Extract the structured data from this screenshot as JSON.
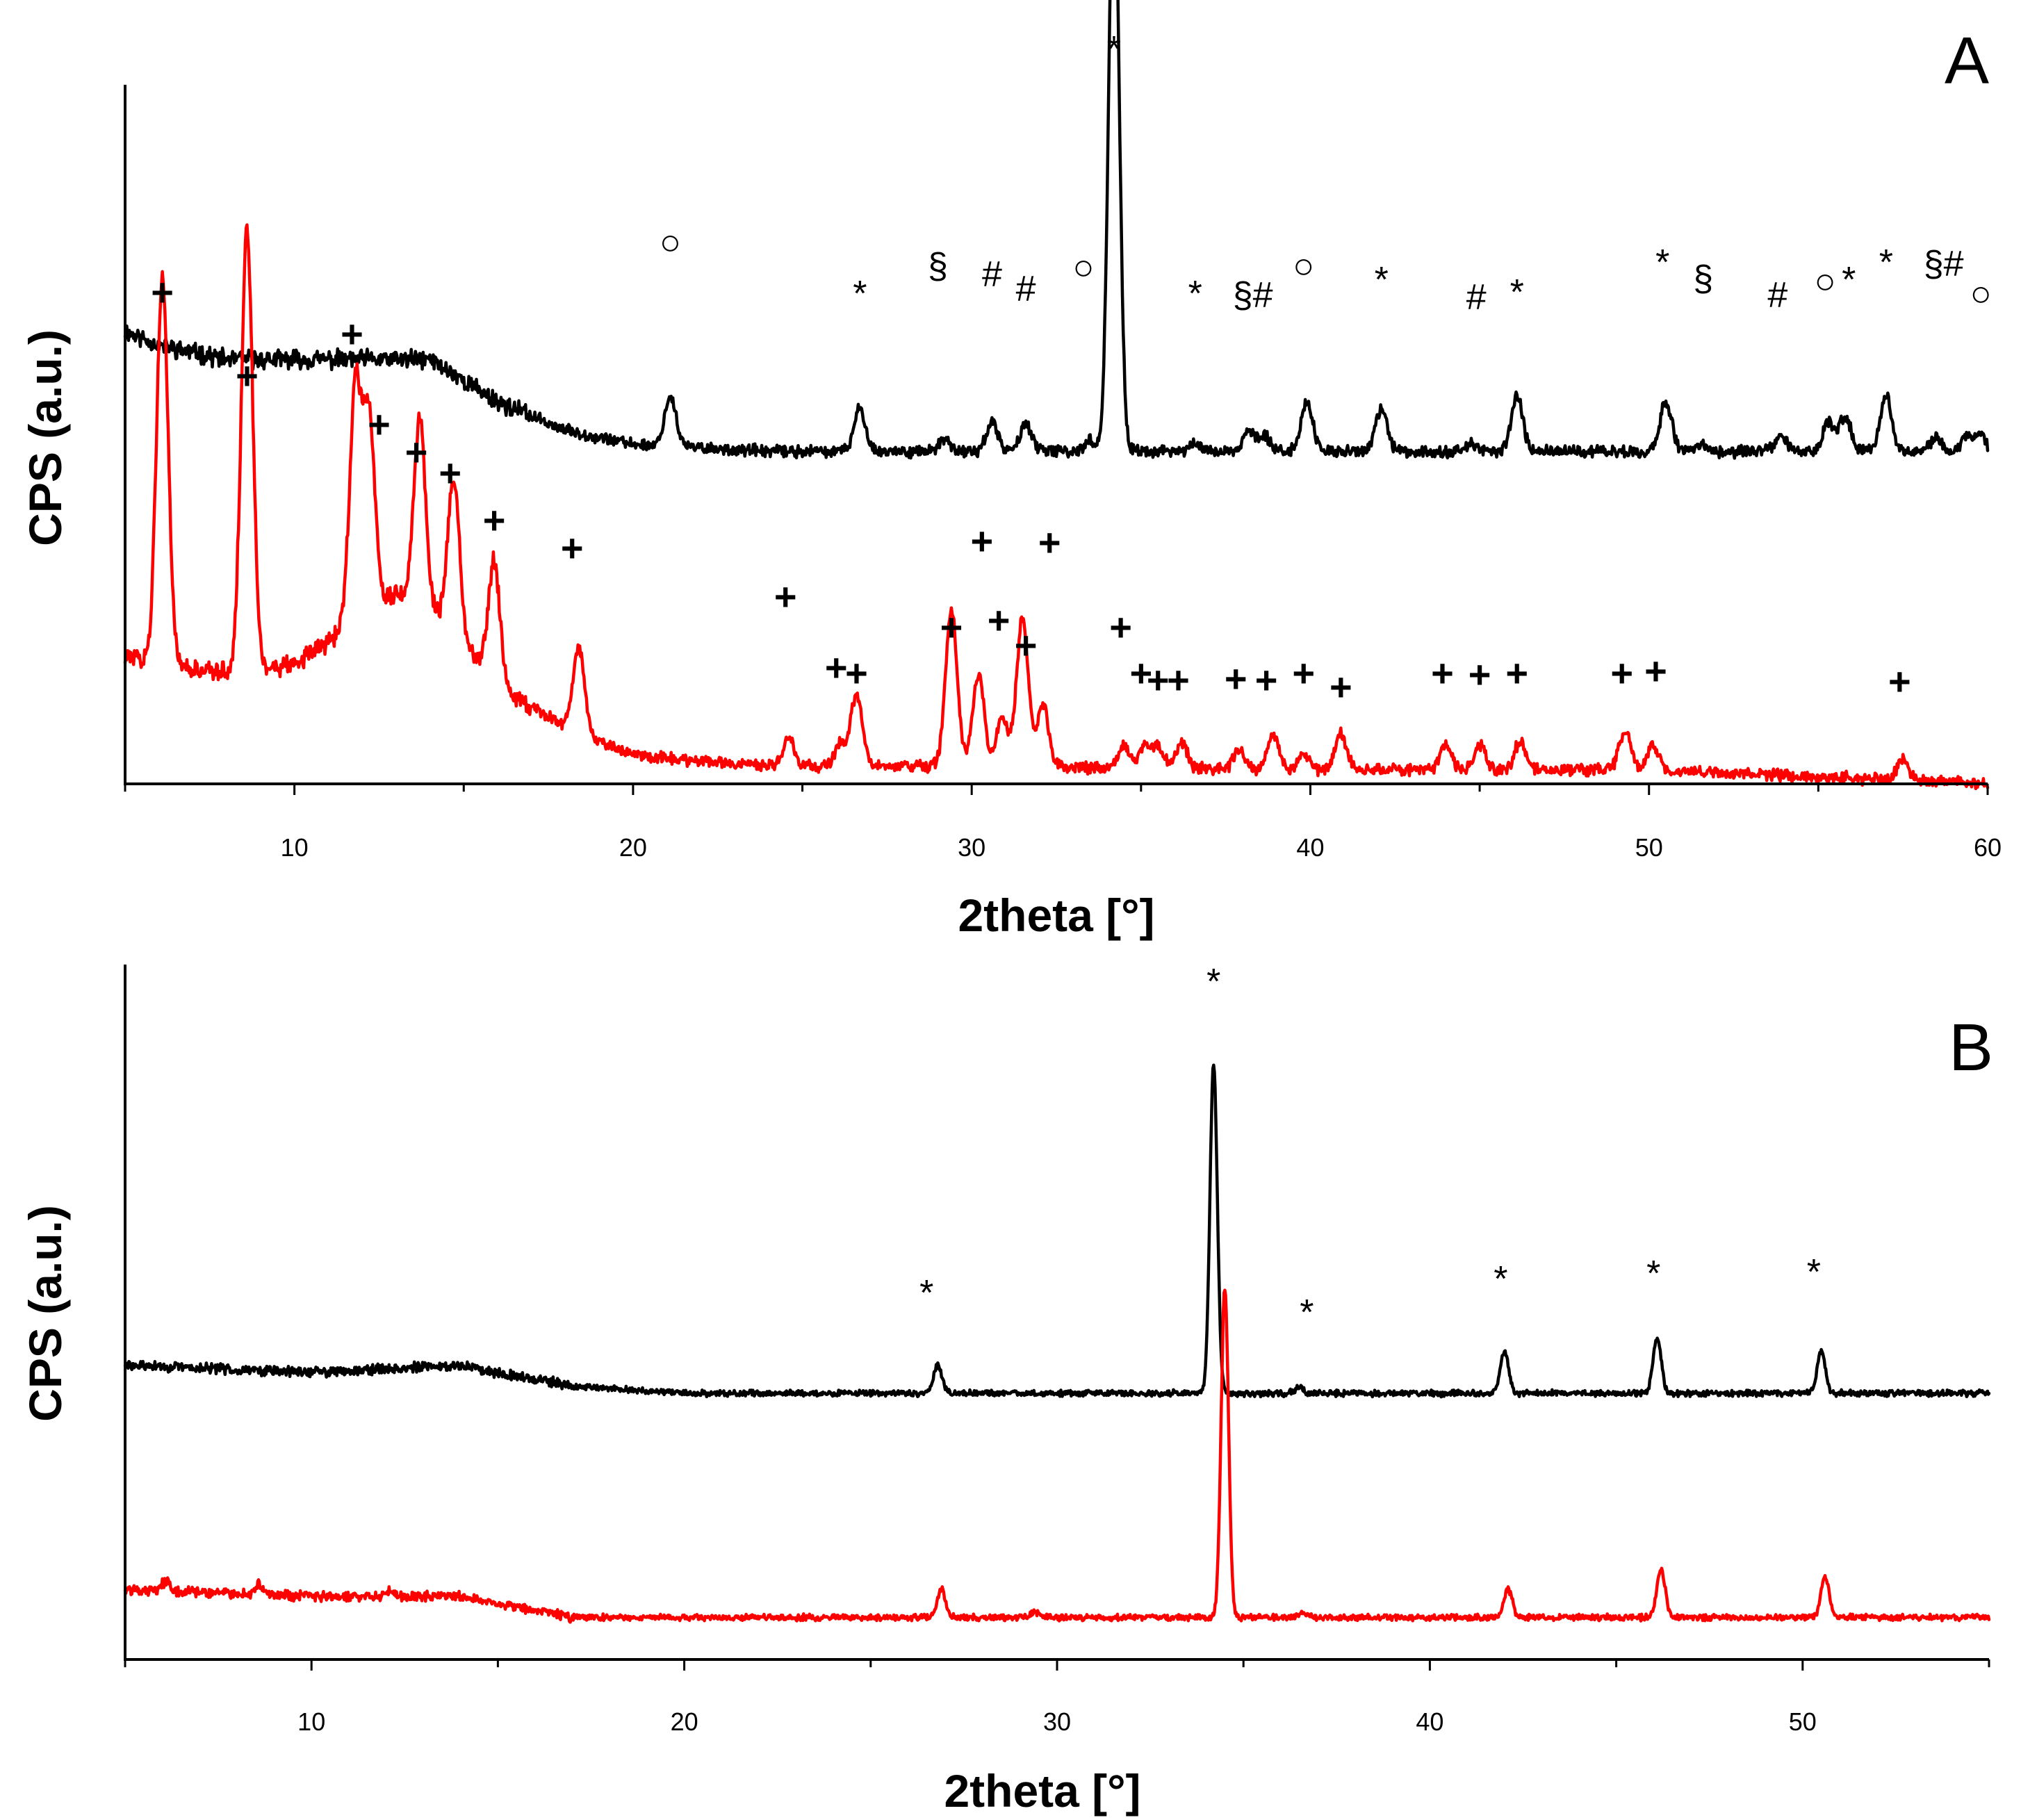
{
  "colors": {
    "sample_1": "#000000",
    "sample_2": "#ff0000",
    "axes": "#000000"
  },
  "chart_data": [
    {
      "panel": "A",
      "type": "line",
      "xlabel": "2theta [°]",
      "ylabel": "CPS (a.u.)",
      "xlim": [
        5,
        60
      ],
      "xticks": [
        10,
        20,
        30,
        40,
        50,
        60
      ],
      "yticks_shown": false,
      "series": [
        {
          "color": "#000000",
          "baseline": [
            [
              5,
              0.64
            ],
            [
              6,
              0.62
            ],
            [
              8,
              0.6
            ],
            [
              10,
              0.6
            ],
            [
              12,
              0.6
            ],
            [
              14,
              0.6
            ],
            [
              16,
              0.54
            ],
            [
              18,
              0.5
            ],
            [
              20,
              0.48
            ],
            [
              24,
              0.47
            ],
            [
              30,
              0.47
            ],
            [
              40,
              0.47
            ],
            [
              50,
              0.47
            ],
            [
              60,
              0.47
            ]
          ],
          "peaks": [
            [
              21.1,
              0.07
            ],
            [
              26.7,
              0.06
            ],
            [
              29.2,
              0.015
            ],
            [
              30.6,
              0.04
            ],
            [
              31.6,
              0.04
            ],
            [
              33.5,
              0.015
            ],
            [
              34.2,
              0.86
            ],
            [
              36.6,
              0.01
            ],
            [
              38.2,
              0.03
            ],
            [
              38.7,
              0.02
            ],
            [
              39.9,
              0.07
            ],
            [
              42.1,
              0.06
            ],
            [
              44.7,
              0.01
            ],
            [
              46.1,
              0.08
            ],
            [
              50.5,
              0.07
            ],
            [
              51.5,
              0.01
            ],
            [
              53.9,
              0.02
            ],
            [
              55.3,
              0.04
            ],
            [
              55.8,
              0.05
            ],
            [
              57,
              0.08
            ],
            [
              58.5,
              0.02
            ],
            [
              59.4,
              0.02
            ],
            [
              59.8,
              0.02
            ]
          ]
        },
        {
          "color": "#ff0000",
          "baseline": [
            [
              5,
              0.18
            ],
            [
              7,
              0.16
            ],
            [
              9,
              0.16
            ],
            [
              10,
              0.17
            ],
            [
              11,
              0.2
            ],
            [
              12,
              0.25
            ],
            [
              13,
              0.27
            ],
            [
              14,
              0.25
            ],
            [
              15,
              0.2
            ],
            [
              16,
              0.14
            ],
            [
              18,
              0.08
            ],
            [
              20,
              0.04
            ],
            [
              24,
              0.025
            ],
            [
              30,
              0.025
            ],
            [
              40,
              0.02
            ],
            [
              50,
              0.02
            ],
            [
              60,
              0
            ]
          ],
          "peaks": [
            [
              6.1,
              0.55
            ],
            [
              8.6,
              0.62
            ],
            [
              11.8,
              0.32
            ],
            [
              12.2,
              0.27
            ],
            [
              13.7,
              0.26
            ],
            [
              14.7,
              0.22
            ],
            [
              15.9,
              0.17
            ],
            [
              18.4,
              0.12
            ],
            [
              24.6,
              0.04
            ],
            [
              26.1,
              0.03
            ],
            [
              26.6,
              0.1
            ],
            [
              29.4,
              0.22
            ],
            [
              30.2,
              0.13
            ],
            [
              30.9,
              0.07
            ],
            [
              31.5,
              0.21
            ],
            [
              32.1,
              0.09
            ],
            [
              34.5,
              0.03
            ],
            [
              35.1,
              0.03
            ],
            [
              35.5,
              0.03
            ],
            [
              36.2,
              0.035
            ],
            [
              37.9,
              0.025
            ],
            [
              38.9,
              0.05
            ],
            [
              39.8,
              0.02
            ],
            [
              40.9,
              0.05
            ],
            [
              44,
              0.035
            ],
            [
              45,
              0.035
            ],
            [
              46.2,
              0.04
            ],
            [
              49.3,
              0.055
            ],
            [
              50.1,
              0.035
            ],
            [
              57.5,
              0.03
            ]
          ]
        }
      ],
      "annotations": [
        {
          "text": "*",
          "x": 34.2
        },
        {
          "text": "○",
          "x": 21.1
        },
        {
          "text": "*",
          "x": 26.7
        },
        {
          "text": "§",
          "x": 29.0
        },
        {
          "text": "#",
          "x": 30.6
        },
        {
          "text": "#",
          "x": 31.6
        },
        {
          "text": "○",
          "x": 33.3
        },
        {
          "text": "*",
          "x": 36.6
        },
        {
          "text": "§#",
          "x": 38.3
        },
        {
          "text": "○",
          "x": 39.8
        },
        {
          "text": "*",
          "x": 42.1
        },
        {
          "text": "#",
          "x": 44.9
        },
        {
          "text": "*",
          "x": 46.1
        },
        {
          "text": "*",
          "x": 50.4
        },
        {
          "text": "§",
          "x": 51.6
        },
        {
          "text": "#",
          "x": 53.8
        },
        {
          "text": "○",
          "x": 55.2
        },
        {
          "text": "*",
          "x": 55.9
        },
        {
          "text": "*",
          "x": 57.0
        },
        {
          "text": "§#",
          "x": 58.7
        },
        {
          "text": "○",
          "x": 59.8
        },
        {
          "text": "+",
          "x": 6.1
        },
        {
          "text": "+",
          "x": 8.6
        },
        {
          "text": "+",
          "x": 11.7
        },
        {
          "text": "+",
          "x": 12.5
        },
        {
          "text": "+",
          "x": 13.6
        },
        {
          "text": "+",
          "x": 14.6
        },
        {
          "text": "+",
          "x": 15.9
        },
        {
          "text": "+",
          "x": 18.2
        },
        {
          "text": "+",
          "x": 24.5
        },
        {
          "text": "+",
          "x": 26.0
        },
        {
          "text": "+",
          "x": 26.6
        },
        {
          "text": "+",
          "x": 29.4
        },
        {
          "text": "+",
          "x": 30.3
        },
        {
          "text": "+",
          "x": 30.8
        },
        {
          "text": "+",
          "x": 31.6
        },
        {
          "text": "+",
          "x": 32.3
        },
        {
          "text": "+",
          "x": 34.4
        },
        {
          "text": "+",
          "x": 35.0
        },
        {
          "text": "+",
          "x": 35.5
        },
        {
          "text": "+",
          "x": 36.1
        },
        {
          "text": "+",
          "x": 37.8
        },
        {
          "text": "+",
          "x": 38.7
        },
        {
          "text": "+",
          "x": 39.8
        },
        {
          "text": "+",
          "x": 40.9
        },
        {
          "text": "+",
          "x": 43.9
        },
        {
          "text": "+",
          "x": 45.0
        },
        {
          "text": "+",
          "x": 46.1
        },
        {
          "text": "+",
          "x": 49.2
        },
        {
          "text": "+",
          "x": 50.2
        },
        {
          "text": "+",
          "x": 57.4
        }
      ]
    },
    {
      "panel": "B",
      "type": "line",
      "xlabel": "2theta [°]",
      "ylabel": "CPS (a.u.)",
      "xlim": [
        5,
        55
      ],
      "xticks": [
        10,
        20,
        30,
        40,
        50
      ],
      "yticks_shown": false,
      "series": [
        {
          "color": "#000000",
          "baseline": [
            [
              5,
              0.42
            ],
            [
              10,
              0.41
            ],
            [
              14,
              0.42
            ],
            [
              17,
              0.39
            ],
            [
              20,
              0.38
            ],
            [
              30,
              0.38
            ],
            [
              40,
              0.38
            ],
            [
              55,
              0.38
            ]
          ],
          "peaks": [
            [
              26.8,
              0.04
            ],
            [
              34.2,
              0.47
            ],
            [
              36.5,
              0.01
            ],
            [
              42,
              0.06
            ],
            [
              46.1,
              0.08
            ],
            [
              50.5,
              0.06
            ]
          ]
        },
        {
          "color": "#ff0000",
          "baseline": [
            [
              5,
              0.1
            ],
            [
              10,
              0.09
            ],
            [
              14,
              0.09
            ],
            [
              17,
              0.06
            ],
            [
              20,
              0.06
            ],
            [
              30,
              0.06
            ],
            [
              40,
              0.06
            ],
            [
              55,
              0.06
            ]
          ],
          "peaks": [
            [
              6.1,
              0.015
            ],
            [
              8.6,
              0.015
            ],
            [
              12.1,
              0.01
            ],
            [
              26.9,
              0.04
            ],
            [
              29.4,
              0.008
            ],
            [
              34.5,
              0.47
            ],
            [
              36.6,
              0.008
            ],
            [
              42.1,
              0.04
            ],
            [
              46.2,
              0.07
            ],
            [
              50.6,
              0.06
            ]
          ]
        }
      ],
      "annotations": [
        {
          "text": "*",
          "x": 34.2
        },
        {
          "text": "*",
          "x": 26.5
        },
        {
          "text": "*",
          "x": 36.7
        },
        {
          "text": "*",
          "x": 41.9
        },
        {
          "text": "*",
          "x": 46.0
        },
        {
          "text": "*",
          "x": 50.3
        }
      ]
    }
  ]
}
